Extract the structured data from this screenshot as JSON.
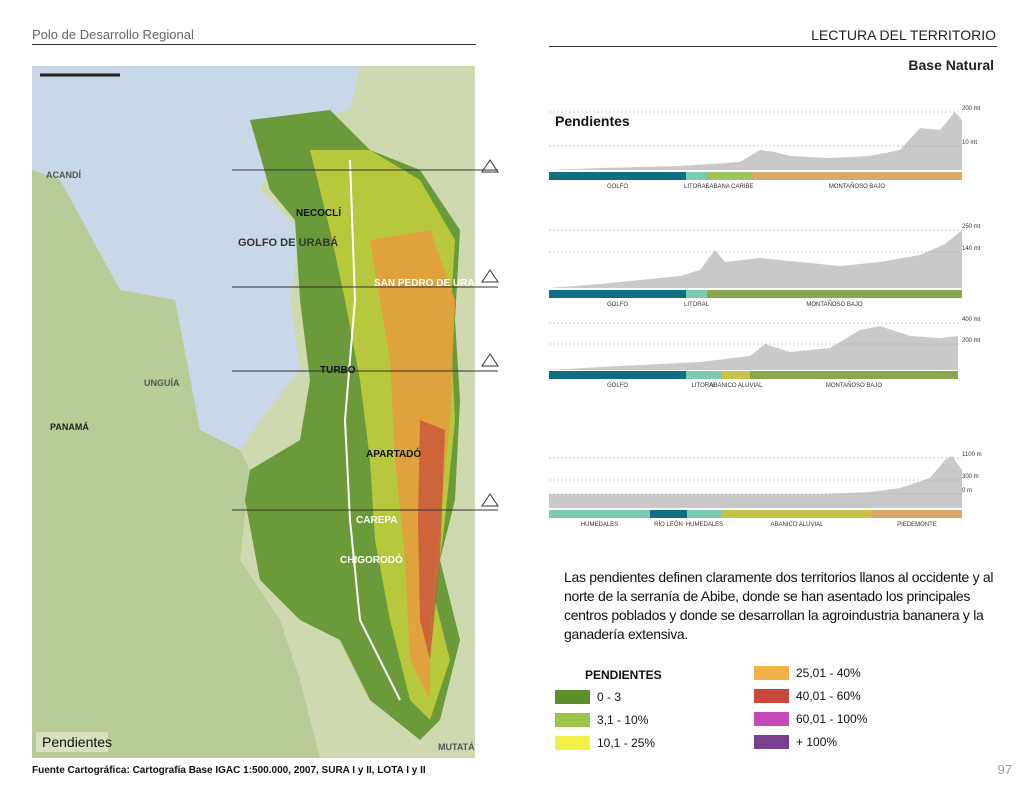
{
  "header": {
    "left": "Polo de Desarrollo Regional",
    "right": "LECTURA DEL TERRITORIO",
    "subtitle": "Base Natural"
  },
  "map": {
    "label": "Pendientes",
    "places": [
      "GOLFO DE URABÁ",
      "NECOCLÍ",
      "SAN PEDRO DE URABÁ",
      "TURBO",
      "APARTADÓ",
      "CAREPA",
      "CHIGORODÓ",
      "PANAMÁ",
      "ACANDÍ",
      "UNGUÍA",
      "MUTATÁ"
    ]
  },
  "profiles": {
    "title": "Pendientes",
    "items": [
      {
        "elevations": [
          "200 mt",
          "10 mt"
        ],
        "segments": [
          {
            "label": "GOLFO",
            "color": "#0f6e82"
          },
          {
            "label": "LITORAL",
            "color": "#7ccab0"
          },
          {
            "label": "SABANA CARIBE",
            "color": "#9cc65a"
          },
          {
            "label": "MONTAÑOSO BAJO",
            "color": "#d9a86a"
          }
        ]
      },
      {
        "elevations": [
          "250 mt",
          "140 mt"
        ],
        "segments": [
          {
            "label": "GOLFO",
            "color": "#0f6e82"
          },
          {
            "label": "LITORAL",
            "color": "#7ccab0"
          },
          {
            "label": "MONTAÑOSO BAJO",
            "color": "#8aa84a"
          }
        ]
      },
      {
        "elevations": [
          "400 mt",
          "200 mt"
        ],
        "segments": [
          {
            "label": "GOLFO",
            "color": "#0f6e82"
          },
          {
            "label": "LITORAL",
            "color": "#7ccab0"
          },
          {
            "label": "ABANICO ALUVIAL",
            "color": "#c9c24a"
          },
          {
            "label": "MONTAÑOSO BAJO",
            "color": "#8aa84a"
          }
        ]
      },
      {
        "elevations": [
          "1100 m",
          "300 m",
          "0 m"
        ],
        "segments": [
          {
            "label": "HUMEDALES",
            "color": "#7ccab0"
          },
          {
            "label": "RÍO LEÓN",
            "color": "#0f6e82"
          },
          {
            "label": "HUMEDALES",
            "color": "#7ccab0"
          },
          {
            "label": "ABANICO ALUVIAL",
            "color": "#c9c24a"
          },
          {
            "label": "PIEDEMONTE",
            "color": "#d9a86a"
          }
        ]
      }
    ]
  },
  "paragraph": "Las pendientes definen claramente dos territorios llanos al occidente y al norte de la serranía de Abibe, donde se han asentado los principales centros poblados y donde se desarrollan la agroindustria bananera y la ganadería extensiva.",
  "legend": {
    "title": "PENDIENTES",
    "items": [
      {
        "label": "0 - 3",
        "color": "#5b8f2e"
      },
      {
        "label": "3,1 - 10%",
        "color": "#9cc64a"
      },
      {
        "label": "10,1 - 25%",
        "color": "#f4f04a"
      },
      {
        "label": "25,01 - 40%",
        "color": "#f2b24a"
      },
      {
        "label": "40,01 - 60%",
        "color": "#c94a3a"
      },
      {
        "label": "60,01 - 100%",
        "color": "#c44ab8"
      },
      {
        "label": "+ 100%",
        "color": "#7a3f8f"
      }
    ]
  },
  "source": "Fuente Cartográfica: Cartografía Base IGAC 1:500.000, 2007, SURA I y II, LOTA I y II",
  "page_number": "97"
}
